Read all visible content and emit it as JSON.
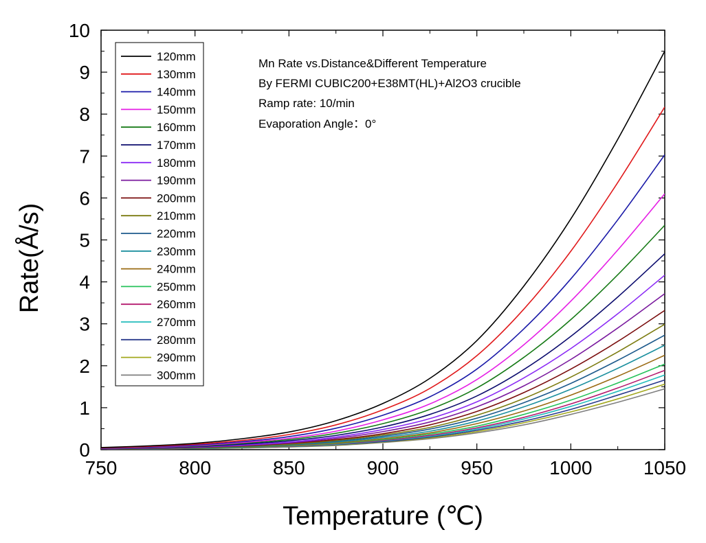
{
  "chart_data": {
    "type": "line",
    "title": "",
    "xlabel": "Temperature (℃)",
    "ylabel": "Rate(Å/s)",
    "xlim": [
      750,
      1050
    ],
    "ylim": [
      0,
      10
    ],
    "x_ticks": [
      "750",
      "800",
      "850",
      "900",
      "950",
      "1000",
      "1050"
    ],
    "y_ticks": [
      "0",
      "1",
      "2",
      "3",
      "4",
      "5",
      "6",
      "7",
      "8",
      "9",
      "10"
    ],
    "grid": false,
    "legend_position": "top-left",
    "annotations": [
      "Mn Rate vs.Distance&Different Temperature",
      "By FERMI CUBIC200+E38MT(HL)+Al2O3 crucible",
      "Ramp rate:   10/min",
      "Evaporation Angle：0°"
    ],
    "x": [
      750,
      775,
      800,
      825,
      850,
      875,
      900,
      925,
      950,
      975,
      1000,
      1025,
      1050
    ],
    "series": [
      {
        "name": "120mm",
        "color": "#000000",
        "values": [
          0.05,
          0.09,
          0.15,
          0.26,
          0.42,
          0.69,
          1.1,
          1.7,
          2.6,
          3.9,
          5.5,
          7.4,
          9.5
        ]
      },
      {
        "name": "130mm",
        "color": "#e0191b",
        "values": [
          0.043,
          0.077,
          0.13,
          0.22,
          0.36,
          0.59,
          0.95,
          1.46,
          2.24,
          3.35,
          4.73,
          6.37,
          8.17
        ]
      },
      {
        "name": "140mm",
        "color": "#1a1aa8",
        "values": [
          0.037,
          0.067,
          0.11,
          0.19,
          0.31,
          0.51,
          0.82,
          1.26,
          1.92,
          2.88,
          4.07,
          5.48,
          7.03
        ]
      },
      {
        "name": "150mm",
        "color": "#e51ee5",
        "values": [
          0.032,
          0.058,
          0.096,
          0.17,
          0.27,
          0.44,
          0.71,
          1.09,
          1.67,
          2.5,
          3.54,
          4.76,
          6.1
        ]
      },
      {
        "name": "160mm",
        "color": "#167a16",
        "values": [
          0.028,
          0.051,
          0.084,
          0.15,
          0.24,
          0.39,
          0.62,
          0.96,
          1.47,
          2.2,
          3.1,
          4.17,
          5.35
        ]
      },
      {
        "name": "170mm",
        "color": "#0c0c6e",
        "values": [
          0.025,
          0.044,
          0.074,
          0.13,
          0.21,
          0.34,
          0.54,
          0.84,
          1.28,
          1.91,
          2.7,
          3.64,
          4.67
        ]
      },
      {
        "name": "180mm",
        "color": "#8b2bf5",
        "values": [
          0.022,
          0.04,
          0.066,
          0.11,
          0.18,
          0.3,
          0.48,
          0.74,
          1.14,
          1.71,
          2.41,
          3.24,
          4.16
        ]
      },
      {
        "name": "190mm",
        "color": "#7a1a9e",
        "values": [
          0.02,
          0.035,
          0.059,
          0.1,
          0.16,
          0.27,
          0.43,
          0.66,
          1.02,
          1.52,
          2.15,
          2.9,
          3.72
        ]
      },
      {
        "name": "200mm",
        "color": "#7a0d0d",
        "values": [
          0.018,
          0.031,
          0.052,
          0.091,
          0.15,
          0.24,
          0.38,
          0.59,
          0.91,
          1.36,
          1.92,
          2.58,
          3.32
        ]
      },
      {
        "name": "210mm",
        "color": "#7c7c10",
        "values": [
          0.016,
          0.028,
          0.047,
          0.082,
          0.13,
          0.22,
          0.35,
          0.53,
          0.82,
          1.22,
          1.73,
          2.33,
          2.99
        ]
      },
      {
        "name": "220mm",
        "color": "#1d5a8c",
        "values": [
          0.014,
          0.026,
          0.043,
          0.074,
          0.12,
          0.2,
          0.32,
          0.49,
          0.75,
          1.12,
          1.58,
          2.13,
          2.73
        ]
      },
      {
        "name": "230mm",
        "color": "#1b8f9e",
        "values": [
          0.013,
          0.023,
          0.039,
          0.068,
          0.11,
          0.18,
          0.29,
          0.44,
          0.68,
          1.02,
          1.44,
          1.94,
          2.49
        ]
      },
      {
        "name": "240mm",
        "color": "#9a6a12",
        "values": [
          0.012,
          0.021,
          0.035,
          0.061,
          0.1,
          0.16,
          0.26,
          0.4,
          0.62,
          0.92,
          1.3,
          1.75,
          2.25
        ]
      },
      {
        "name": "250mm",
        "color": "#25c25a",
        "values": [
          0.011,
          0.019,
          0.032,
          0.055,
          0.091,
          0.15,
          0.24,
          0.37,
          0.56,
          0.84,
          1.18,
          1.59,
          2.04
        ]
      },
      {
        "name": "260mm",
        "color": "#b3196e",
        "values": [
          0.01,
          0.018,
          0.029,
          0.051,
          0.083,
          0.14,
          0.22,
          0.34,
          0.52,
          0.77,
          1.09,
          1.47,
          1.89
        ]
      },
      {
        "name": "270mm",
        "color": "#22bcbc",
        "values": [
          0.0095,
          0.017,
          0.028,
          0.048,
          0.078,
          0.13,
          0.21,
          0.32,
          0.49,
          0.73,
          1.03,
          1.39,
          1.78
        ]
      },
      {
        "name": "280mm",
        "color": "#2a3a8c",
        "values": [
          0.0088,
          0.016,
          0.026,
          0.045,
          0.073,
          0.12,
          0.19,
          0.3,
          0.46,
          0.68,
          0.96,
          1.3,
          1.66
        ]
      },
      {
        "name": "290mm",
        "color": "#a3a81e",
        "values": [
          0.0082,
          0.015,
          0.024,
          0.042,
          0.068,
          0.11,
          0.18,
          0.28,
          0.43,
          0.64,
          0.9,
          1.21,
          1.56
        ]
      },
      {
        "name": "300mm",
        "color": "#7f7f7f",
        "values": [
          0.0077,
          0.014,
          0.023,
          0.039,
          0.064,
          0.1,
          0.17,
          0.26,
          0.4,
          0.59,
          0.84,
          1.13,
          1.45
        ]
      }
    ]
  }
}
